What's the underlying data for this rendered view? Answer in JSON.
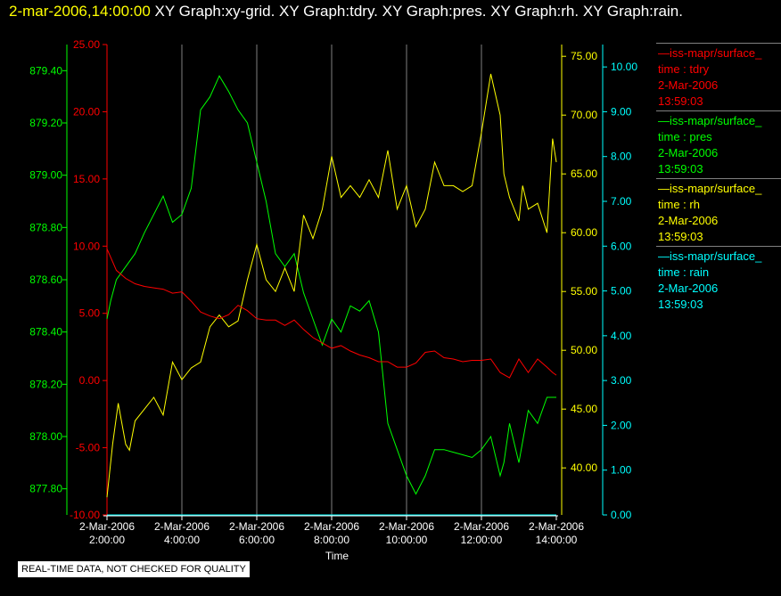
{
  "header": {
    "time": "2-mar-2006,14:00:00",
    "titles": "XY Graph:xy-grid.  XY Graph:tdry.  XY Graph:pres.  XY Graph:rh.  XY Graph:rain."
  },
  "colors": {
    "tdry": "#ff0000",
    "pres": "#00ff00",
    "rh": "#ffff00",
    "rain": "#00ffff",
    "grid": "#808080"
  },
  "legend": [
    {
      "key": "tdry",
      "source": "—iss-mapr/surface_",
      "pair": "time : tdry",
      "date": "2-Mar-2006",
      "time": "13:59:03"
    },
    {
      "key": "pres",
      "source": "—iss-mapr/surface_",
      "pair": "time : pres",
      "date": "2-Mar-2006",
      "time": "13:59:03"
    },
    {
      "key": "rh",
      "source": "—iss-mapr/surface_",
      "pair": "time : rh",
      "date": "2-Mar-2006",
      "time": "13:59:03"
    },
    {
      "key": "rain",
      "source": "—iss-mapr/surface_",
      "pair": "time : rain",
      "date": "2-Mar-2006",
      "time": "13:59:03"
    }
  ],
  "footer": {
    "notice": "REAL-TIME DATA, NOT CHECKED FOR QUALITY"
  },
  "chart_data": {
    "type": "line",
    "xlabel": "Time",
    "x_ticks": [
      {
        "hour": 2,
        "line1": "2-Mar-2006",
        "line2": "2:00:00"
      },
      {
        "hour": 4,
        "line1": "2-Mar-2006",
        "line2": "4:00:00"
      },
      {
        "hour": 6,
        "line1": "2-Mar-2006",
        "line2": "6:00:00"
      },
      {
        "hour": 8,
        "line1": "2-Mar-2006",
        "line2": "8:00:00"
      },
      {
        "hour": 10,
        "line1": "2-Mar-2006",
        "line2": "10:00:00"
      },
      {
        "hour": 12,
        "line1": "2-Mar-2006",
        "line2": "12:00:00"
      },
      {
        "hour": 14,
        "line1": "2-Mar-2006",
        "line2": "14:00:00"
      }
    ],
    "xlim": [
      2,
      14
    ],
    "grid": true,
    "axes": {
      "tdry": {
        "range": [
          -10,
          25
        ],
        "ticks": [
          "-10.00",
          "-5.00",
          "0.00",
          "5.00",
          "10.00",
          "15.00",
          "20.00",
          "25.00"
        ]
      },
      "pres": {
        "range": [
          877.7,
          879.5
        ],
        "ticks": [
          "877.80",
          "878.00",
          "878.20",
          "878.40",
          "878.60",
          "878.80",
          "879.00",
          "879.20",
          "879.40"
        ]
      },
      "rh": {
        "range": [
          36,
          76
        ],
        "ticks": [
          "40.00",
          "45.00",
          "50.00",
          "55.00",
          "60.00",
          "65.00",
          "70.00",
          "75.00"
        ]
      },
      "rain": {
        "range": [
          0,
          10.5
        ],
        "ticks": [
          "0.00",
          "1.00",
          "2.00",
          "3.00",
          "4.00",
          "5.00",
          "6.00",
          "7.00",
          "8.00",
          "9.00",
          "10.00"
        ]
      }
    },
    "series": [
      {
        "name": "time : tdry",
        "key": "tdry",
        "x": [
          2.0,
          2.25,
          2.5,
          2.75,
          3.0,
          3.25,
          3.5,
          3.75,
          4.0,
          4.25,
          4.5,
          4.75,
          5.0,
          5.25,
          5.5,
          5.75,
          6.0,
          6.25,
          6.5,
          6.75,
          7.0,
          7.25,
          7.5,
          7.75,
          8.0,
          8.25,
          8.5,
          8.75,
          9.0,
          9.25,
          9.5,
          9.75,
          10.0,
          10.25,
          10.5,
          10.75,
          11.0,
          11.25,
          11.5,
          11.75,
          12.0,
          12.25,
          12.5,
          12.75,
          13.0,
          13.25,
          13.5,
          13.75,
          13.9,
          14.0
        ],
        "y": [
          9.8,
          8.2,
          7.6,
          7.2,
          7.0,
          6.9,
          6.8,
          6.5,
          6.6,
          5.9,
          5.1,
          4.8,
          4.6,
          4.9,
          5.6,
          5.2,
          4.6,
          4.5,
          4.5,
          4.1,
          4.5,
          3.8,
          3.2,
          2.8,
          2.4,
          2.6,
          2.2,
          1.9,
          1.7,
          1.4,
          1.4,
          1.0,
          1.0,
          1.3,
          2.1,
          2.2,
          1.7,
          1.6,
          1.4,
          1.5,
          1.5,
          1.6,
          0.6,
          0.2,
          1.6,
          0.6,
          1.6,
          1.0,
          0.6,
          0.4
        ]
      },
      {
        "name": "time : pres",
        "key": "pres",
        "x": [
          2.0,
          2.1,
          2.25,
          2.5,
          2.75,
          3.0,
          3.25,
          3.5,
          3.75,
          4.0,
          4.25,
          4.5,
          4.75,
          5.0,
          5.25,
          5.5,
          5.75,
          6.0,
          6.25,
          6.5,
          6.75,
          7.0,
          7.25,
          7.5,
          7.75,
          8.0,
          8.25,
          8.5,
          8.75,
          9.0,
          9.25,
          9.5,
          9.75,
          10.0,
          10.25,
          10.5,
          10.75,
          11.0,
          11.25,
          11.5,
          11.75,
          12.0,
          12.25,
          12.5,
          12.6,
          12.75,
          13.0,
          13.25,
          13.5,
          13.75,
          14.0
        ],
        "y": [
          878.45,
          878.52,
          878.6,
          878.65,
          878.7,
          878.78,
          878.85,
          878.92,
          878.82,
          878.85,
          878.95,
          879.25,
          879.3,
          879.38,
          879.32,
          879.25,
          879.2,
          879.05,
          878.9,
          878.7,
          878.65,
          878.7,
          878.55,
          878.45,
          878.35,
          878.45,
          878.4,
          878.5,
          878.48,
          878.52,
          878.4,
          878.05,
          877.95,
          877.85,
          877.78,
          877.85,
          877.95,
          877.95,
          877.94,
          877.93,
          877.92,
          877.95,
          878.0,
          877.85,
          877.9,
          878.05,
          877.9,
          878.1,
          878.05,
          878.15,
          878.15
        ]
      },
      {
        "name": "time : rh",
        "key": "rh",
        "x": [
          2.0,
          2.15,
          2.3,
          2.5,
          2.6,
          2.75,
          3.0,
          3.25,
          3.5,
          3.75,
          4.0,
          4.25,
          4.5,
          4.75,
          5.0,
          5.25,
          5.5,
          5.75,
          6.0,
          6.25,
          6.5,
          6.75,
          7.0,
          7.25,
          7.5,
          7.75,
          8.0,
          8.25,
          8.5,
          8.75,
          9.0,
          9.25,
          9.5,
          9.75,
          10.0,
          10.25,
          10.5,
          10.75,
          11.0,
          11.25,
          11.5,
          11.75,
          12.0,
          12.25,
          12.5,
          12.6,
          12.75,
          13.0,
          13.1,
          13.25,
          13.5,
          13.75,
          13.9,
          14.0
        ],
        "y": [
          37.5,
          42.0,
          45.5,
          42.0,
          41.5,
          44.0,
          45.0,
          46.0,
          44.5,
          49.0,
          47.5,
          48.5,
          49.0,
          52.0,
          53.0,
          52.0,
          52.5,
          56.0,
          59.0,
          56.0,
          55.0,
          57.0,
          55.0,
          61.5,
          59.5,
          62.0,
          66.5,
          63.0,
          64.0,
          63.0,
          64.5,
          63.0,
          67.0,
          62.0,
          64.0,
          60.5,
          62.0,
          66.0,
          64.0,
          64.0,
          63.5,
          64.0,
          68.5,
          73.5,
          70.0,
          65.0,
          63.0,
          61.0,
          64.0,
          62.0,
          62.5,
          60.0,
          68.0,
          66.0
        ]
      },
      {
        "name": "time : rain",
        "key": "rain",
        "x": [
          2.0,
          14.0
        ],
        "y": [
          0.0,
          0.0
        ]
      }
    ]
  }
}
